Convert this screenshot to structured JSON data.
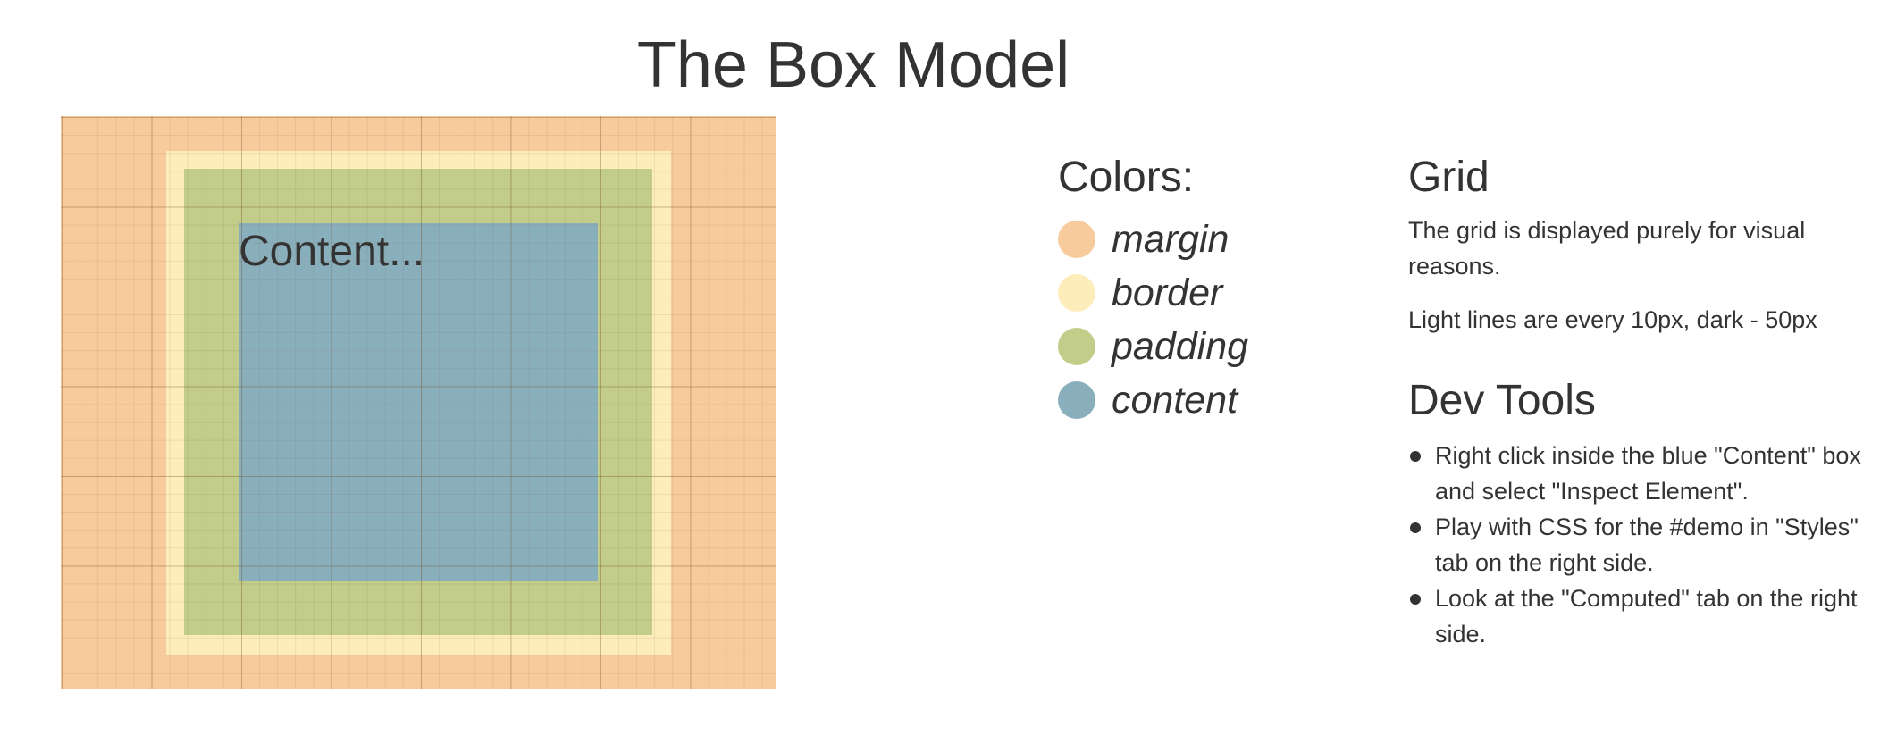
{
  "page": {
    "title": "The Box Model"
  },
  "demo": {
    "content_label": "Content...",
    "colors": {
      "margin": "#f8cb9c",
      "border": "#fdedbb",
      "padding": "#c1cd88",
      "content": "#8aafbc"
    }
  },
  "legend": {
    "title": "Colors:",
    "items": [
      {
        "label": "margin",
        "color": "#f8cb9c"
      },
      {
        "label": "border",
        "color": "#fdedbb"
      },
      {
        "label": "padding",
        "color": "#c1cd88"
      },
      {
        "label": "content",
        "color": "#8aafbc"
      }
    ]
  },
  "grid_info": {
    "title": "Grid",
    "description": "The grid is displayed purely for visual reasons.",
    "lines": "Light lines are every 10px, dark - 50px"
  },
  "devtools": {
    "title": "Dev Tools",
    "tips": [
      "Right click inside the blue \"Content\" box and select \"Inspect Element\".",
      "Play with CSS for the #demo in \"Styles\" tab on the right side.",
      "Look at the \"Computed\" tab on the right side."
    ]
  }
}
